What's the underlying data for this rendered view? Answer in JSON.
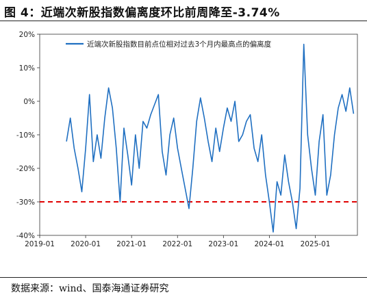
{
  "figure_title": "图 4：近端次新股指数偏离度环比前周降至-3.74%",
  "source_text": "数据来源：wind、国泰海通证券研究",
  "chart_data": {
    "type": "line",
    "title": "",
    "xlabel": "",
    "ylabel": "",
    "x_ticks": [
      "2019-01",
      "2020-01",
      "2021-01",
      "2022-01",
      "2023-01",
      "2024-01",
      "2025-01"
    ],
    "y_ticks": [
      "20%",
      "10%",
      "0%",
      "-10%",
      "-20%",
      "-30%",
      "-40%"
    ],
    "xlim": [
      "2019-01",
      "2025-12"
    ],
    "ylim": [
      -40,
      20
    ],
    "legend_position": "top-center",
    "series": [
      {
        "name": "近端次新股指数目前点位相对过去3个月内最高点的偏离度",
        "color": "#1f6fc1",
        "points": [
          [
            "2019-08",
            -12
          ],
          [
            "2019-09",
            -5
          ],
          [
            "2019-10",
            -14
          ],
          [
            "2019-11",
            -20
          ],
          [
            "2019-12",
            -27
          ],
          [
            "2020-01",
            -14
          ],
          [
            "2020-02",
            2
          ],
          [
            "2020-03",
            -18
          ],
          [
            "2020-04",
            -10
          ],
          [
            "2020-05",
            -17
          ],
          [
            "2020-06",
            -5
          ],
          [
            "2020-07",
            4
          ],
          [
            "2020-08",
            -2
          ],
          [
            "2020-09",
            -14
          ],
          [
            "2020-10",
            -30
          ],
          [
            "2020-11",
            -8
          ],
          [
            "2020-12",
            -16
          ],
          [
            "2021-01",
            -25
          ],
          [
            "2021-02",
            -10
          ],
          [
            "2021-03",
            -20
          ],
          [
            "2021-04",
            -6
          ],
          [
            "2021-05",
            -8
          ],
          [
            "2021-06",
            -4
          ],
          [
            "2021-07",
            -1
          ],
          [
            "2021-08",
            2
          ],
          [
            "2021-09",
            -15
          ],
          [
            "2021-10",
            -22
          ],
          [
            "2021-11",
            -10
          ],
          [
            "2021-12",
            -5
          ],
          [
            "2022-01",
            -14
          ],
          [
            "2022-02",
            -20
          ],
          [
            "2022-03",
            -26
          ],
          [
            "2022-04",
            -32
          ],
          [
            "2022-05",
            -20
          ],
          [
            "2022-06",
            -6
          ],
          [
            "2022-07",
            1
          ],
          [
            "2022-08",
            -5
          ],
          [
            "2022-09",
            -12
          ],
          [
            "2022-10",
            -18
          ],
          [
            "2022-11",
            -8
          ],
          [
            "2022-12",
            -15
          ],
          [
            "2023-01",
            -8
          ],
          [
            "2023-02",
            -2
          ],
          [
            "2023-03",
            -6
          ],
          [
            "2023-04",
            0
          ],
          [
            "2023-05",
            -12
          ],
          [
            "2023-06",
            -10
          ],
          [
            "2023-07",
            -6
          ],
          [
            "2023-08",
            -4
          ],
          [
            "2023-09",
            -14
          ],
          [
            "2023-10",
            -18
          ],
          [
            "2023-11",
            -10
          ],
          [
            "2023-12",
            -22
          ],
          [
            "2024-01",
            -30
          ],
          [
            "2024-02",
            -39
          ],
          [
            "2024-03",
            -24
          ],
          [
            "2024-04",
            -28
          ],
          [
            "2024-05",
            -16
          ],
          [
            "2024-06",
            -24
          ],
          [
            "2024-07",
            -30
          ],
          [
            "2024-08",
            -38
          ],
          [
            "2024-09",
            -26
          ],
          [
            "2024-10",
            17
          ],
          [
            "2024-11",
            -10
          ],
          [
            "2024-12",
            -20
          ],
          [
            "2025-01",
            -28
          ],
          [
            "2025-02",
            -12
          ],
          [
            "2025-03",
            -4
          ],
          [
            "2025-04",
            -28
          ],
          [
            "2025-05",
            -22
          ],
          [
            "2025-06",
            -10
          ],
          [
            "2025-07",
            -2
          ],
          [
            "2025-08",
            2
          ],
          [
            "2025-09",
            -3
          ],
          [
            "2025-10",
            4
          ],
          [
            "2025-11",
            -3.74
          ]
        ]
      }
    ],
    "reference_lines": [
      {
        "y": -30,
        "color": "#e00000",
        "style": "dashed"
      }
    ]
  }
}
